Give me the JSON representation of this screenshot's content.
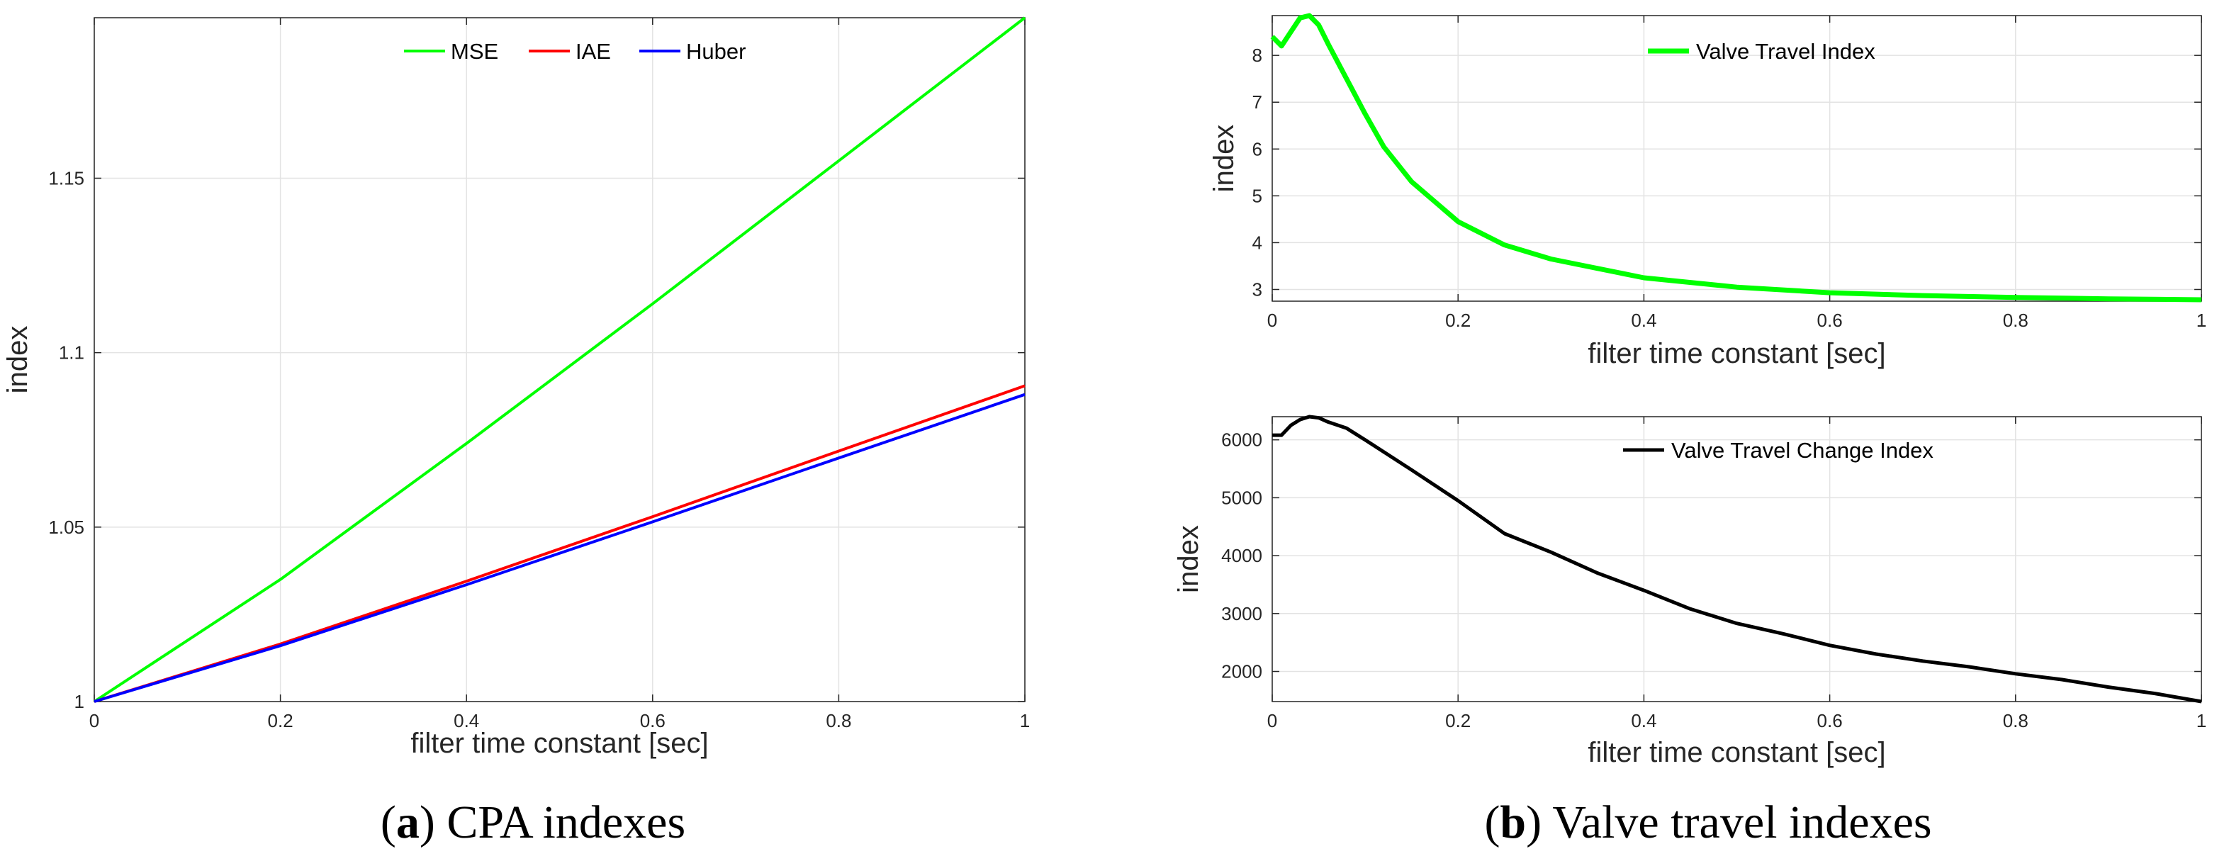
{
  "chart_data": [
    {
      "id": "cpa",
      "type": "line",
      "xlabel": "filter time constant [sec]",
      "ylabel": "index",
      "xlim": [
        0,
        1
      ],
      "ylim": [
        1,
        1.196
      ],
      "xticks": [
        0,
        0.2,
        0.4,
        0.6,
        0.8,
        1
      ],
      "yticks": [
        1,
        1.05,
        1.1,
        1.15
      ],
      "xticklabels": [
        "0",
        "0.2",
        "0.4",
        "0.6",
        "0.8",
        "1"
      ],
      "yticklabels": [
        "1",
        "1.05",
        "1.1",
        "1.15"
      ],
      "grid": true,
      "legend_position": "top-center",
      "legend_orientation": "horizontal",
      "series": [
        {
          "name": "MSE",
          "color": "#00ff00",
          "x": [
            0,
            0.2,
            0.4,
            0.6,
            0.8,
            1
          ],
          "values": [
            1.0,
            1.035,
            1.074,
            1.114,
            1.155,
            1.196
          ]
        },
        {
          "name": "IAE",
          "color": "#ff0000",
          "x": [
            0,
            0.2,
            0.4,
            0.6,
            0.8,
            1
          ],
          "values": [
            1.0,
            1.0165,
            1.0345,
            1.053,
            1.0718,
            1.0905
          ]
        },
        {
          "name": "Huber",
          "color": "#0000ff",
          "x": [
            0,
            0.2,
            0.4,
            0.6,
            0.8,
            1
          ],
          "values": [
            1.0,
            1.016,
            1.0335,
            1.0515,
            1.0698,
            1.088
          ]
        }
      ],
      "caption_letter": "(a)",
      "caption_text": " CPA indexes"
    },
    {
      "id": "vti",
      "type": "line",
      "xlabel": "filter time constant [sec]",
      "ylabel": "index",
      "xlim": [
        0,
        1
      ],
      "ylim": [
        2.75,
        8.85
      ],
      "xticks": [
        0,
        0.2,
        0.4,
        0.6,
        0.8,
        1
      ],
      "yticks": [
        3,
        4,
        5,
        6,
        7,
        8
      ],
      "xticklabels": [
        "0",
        "0.2",
        "0.4",
        "0.6",
        "0.8",
        "1"
      ],
      "yticklabels": [
        "3",
        "4",
        "5",
        "6",
        "7",
        "8"
      ],
      "grid": true,
      "legend_position": "top-center",
      "series": [
        {
          "name": "Valve Travel Index",
          "color": "#00ff00",
          "x": [
            0,
            0.01,
            0.02,
            0.03,
            0.04,
            0.05,
            0.06,
            0.08,
            0.1,
            0.12,
            0.15,
            0.2,
            0.25,
            0.3,
            0.4,
            0.5,
            0.6,
            0.7,
            0.8,
            0.9,
            1.0
          ],
          "values": [
            8.4,
            8.2,
            8.5,
            8.8,
            8.85,
            8.65,
            8.25,
            7.5,
            6.75,
            6.05,
            5.3,
            4.45,
            3.95,
            3.65,
            3.25,
            3.05,
            2.93,
            2.87,
            2.83,
            2.8,
            2.78
          ]
        }
      ]
    },
    {
      "id": "vtci",
      "type": "line",
      "xlabel": "filter time constant [sec]",
      "ylabel": "index",
      "xlim": [
        0,
        1
      ],
      "ylim": [
        1480,
        6400
      ],
      "xticks": [
        0,
        0.2,
        0.4,
        0.6,
        0.8,
        1
      ],
      "yticks": [
        2000,
        3000,
        4000,
        5000,
        6000
      ],
      "xticklabels": [
        "0",
        "0.2",
        "0.4",
        "0.6",
        "0.8",
        "1"
      ],
      "yticklabels": [
        "2000",
        "3000",
        "4000",
        "5000",
        "6000"
      ],
      "grid": true,
      "legend_position": "top-center",
      "series": [
        {
          "name": "Valve Travel Change Index",
          "color": "#000000",
          "x": [
            0,
            0.01,
            0.02,
            0.03,
            0.04,
            0.05,
            0.06,
            0.08,
            0.1,
            0.15,
            0.2,
            0.25,
            0.3,
            0.35,
            0.4,
            0.45,
            0.5,
            0.55,
            0.6,
            0.65,
            0.7,
            0.75,
            0.8,
            0.85,
            0.9,
            0.95,
            1.0
          ],
          "values": [
            6080,
            6080,
            6250,
            6350,
            6400,
            6380,
            6310,
            6200,
            6000,
            5480,
            4950,
            4380,
            4060,
            3700,
            3400,
            3080,
            2830,
            2650,
            2450,
            2300,
            2180,
            2080,
            1960,
            1860,
            1730,
            1620,
            1480
          ]
        }
      ],
      "caption_letter": "(b)",
      "caption_text": " Valve travel indexes"
    }
  ]
}
